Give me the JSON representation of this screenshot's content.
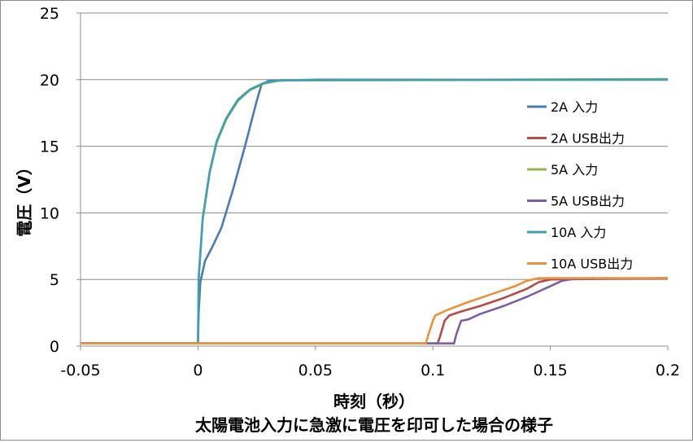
{
  "chart_data": {
    "type": "line",
    "title": "太陽電池入力に急激に電圧を印可した場合の様子",
    "xlabel": "時刻（秒）",
    "ylabel": "電圧（V）",
    "xlim": [
      -0.05,
      0.2
    ],
    "ylim": [
      0,
      25
    ],
    "x_ticks": [
      "-0.05",
      "0",
      "0.05",
      "0.1",
      "0.15",
      "0.2"
    ],
    "y_ticks": [
      "0",
      "5",
      "10",
      "15",
      "20",
      "25"
    ],
    "grid": "horizontal major gridlines",
    "legend_position": "right, inside plot",
    "series": [
      {
        "name": "2A 入力",
        "color": "#4a7ab8",
        "points": [
          [
            -0.05,
            0.2
          ],
          [
            0,
            0.2
          ],
          [
            0.0003,
            2.5
          ],
          [
            0.001,
            4.8
          ],
          [
            0.003,
            6.4
          ],
          [
            0.006,
            7.4
          ],
          [
            0.01,
            8.9
          ],
          [
            0.015,
            11.8
          ],
          [
            0.02,
            15.0
          ],
          [
            0.025,
            18.4
          ],
          [
            0.027,
            19.6
          ],
          [
            0.03,
            19.9
          ],
          [
            0.05,
            20.0
          ],
          [
            0.2,
            20.0
          ]
        ]
      },
      {
        "name": "2A USB出力",
        "color": "#b84a47",
        "points": [
          [
            -0.05,
            0.2
          ],
          [
            0.102,
            0.2
          ],
          [
            0.103,
            0.7
          ],
          [
            0.105,
            1.9
          ],
          [
            0.107,
            2.3
          ],
          [
            0.112,
            2.6
          ],
          [
            0.12,
            3.0
          ],
          [
            0.13,
            3.6
          ],
          [
            0.14,
            4.3
          ],
          [
            0.145,
            4.8
          ],
          [
            0.15,
            5.0
          ],
          [
            0.2,
            5.1
          ]
        ]
      },
      {
        "name": "5A 入力",
        "color": "#93b54e",
        "points": [
          [
            -0.05,
            0.2
          ],
          [
            0,
            0.2
          ],
          [
            0.0003,
            5.0
          ],
          [
            0.002,
            9.5
          ],
          [
            0.005,
            13.0
          ],
          [
            0.008,
            15.3
          ],
          [
            0.012,
            17.0
          ],
          [
            0.017,
            18.4
          ],
          [
            0.022,
            19.2
          ],
          [
            0.028,
            19.7
          ],
          [
            0.035,
            19.95
          ],
          [
            0.2,
            20.05
          ]
        ]
      },
      {
        "name": "5A USB出力",
        "color": "#7b5ea6",
        "points": [
          [
            -0.05,
            0.2
          ],
          [
            0.109,
            0.2
          ],
          [
            0.11,
            0.9
          ],
          [
            0.112,
            1.9
          ],
          [
            0.115,
            2.0
          ],
          [
            0.12,
            2.4
          ],
          [
            0.13,
            3.0
          ],
          [
            0.14,
            3.7
          ],
          [
            0.15,
            4.5
          ],
          [
            0.155,
            4.9
          ],
          [
            0.16,
            5.05
          ],
          [
            0.2,
            5.1
          ]
        ]
      },
      {
        "name": "10A 入力",
        "color": "#3fa0b3",
        "points": [
          [
            -0.05,
            0.2
          ],
          [
            0,
            0.2
          ],
          [
            0.0003,
            5.2
          ],
          [
            0.002,
            9.6
          ],
          [
            0.005,
            13.1
          ],
          [
            0.008,
            15.4
          ],
          [
            0.012,
            17.1
          ],
          [
            0.017,
            18.5
          ],
          [
            0.022,
            19.25
          ],
          [
            0.028,
            19.75
          ],
          [
            0.035,
            19.95
          ],
          [
            0.2,
            20.0
          ]
        ]
      },
      {
        "name": "10A USB出力",
        "color": "#e8923a",
        "points": [
          [
            -0.05,
            0.2
          ],
          [
            0.097,
            0.2
          ],
          [
            0.098,
            0.8
          ],
          [
            0.1,
            1.9
          ],
          [
            0.101,
            2.3
          ],
          [
            0.106,
            2.7
          ],
          [
            0.115,
            3.3
          ],
          [
            0.125,
            3.9
          ],
          [
            0.135,
            4.5
          ],
          [
            0.14,
            4.9
          ],
          [
            0.145,
            5.1
          ],
          [
            0.2,
            5.1
          ]
        ]
      }
    ]
  }
}
